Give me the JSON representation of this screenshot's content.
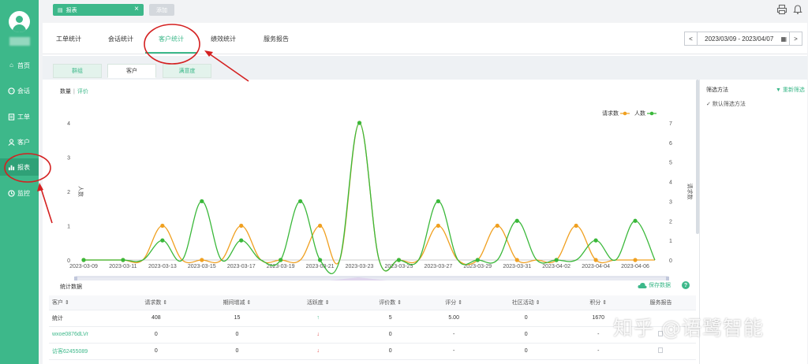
{
  "sidebar": {
    "items": [
      {
        "label": "首页",
        "icon": "home-icon"
      },
      {
        "label": "会话",
        "icon": "chat-icon"
      },
      {
        "label": "工单",
        "icon": "ticket-icon"
      },
      {
        "label": "客户",
        "icon": "user-icon"
      },
      {
        "label": "报表",
        "icon": "bar-chart-icon",
        "active": true
      },
      {
        "label": "监控",
        "icon": "monitor-icon"
      }
    ]
  },
  "topbar": {
    "page_tab": "报表",
    "add_tab": "添加"
  },
  "module_tabs": [
    "工单统计",
    "会话统计",
    "客户统计",
    "绩效统计",
    "服务报告"
  ],
  "date_range": {
    "prev": "<",
    "value": "2023/03/09 - 2023/04/07",
    "next": ">"
  },
  "sub_tabs": [
    "群组",
    "客户",
    "满意度"
  ],
  "metric_switch": {
    "count": "数量",
    "sep": "|",
    "eval": "评价"
  },
  "filter": {
    "title": "筛选方法",
    "reset": "重新筛选",
    "default": "默认筛选方法"
  },
  "chart_data": {
    "type": "line",
    "x": [
      "2023-03-09",
      "2023-03-10",
      "2023-03-11",
      "2023-03-12",
      "2023-03-13",
      "2023-03-14",
      "2023-03-15",
      "2023-03-16",
      "2023-03-17",
      "2023-03-18",
      "2023-03-19",
      "2023-03-20",
      "2023-03-21",
      "2023-03-22",
      "2023-03-23",
      "2023-03-24",
      "2023-03-25",
      "2023-03-26",
      "2023-03-27",
      "2023-03-28",
      "2023-03-29",
      "2023-03-30",
      "2023-03-31",
      "2023-04-01",
      "2023-04-02",
      "2023-04-03",
      "2023-04-04",
      "2023-04-05",
      "2023-04-06",
      "2023-04-07"
    ],
    "x_tick_labels": [
      "2023-03-09",
      "2023-03-11",
      "2023-03-13",
      "2023-03-15",
      "2023-03-17",
      "2023-03-19",
      "2023-03-21",
      "2023-03-23",
      "2023-03-25",
      "2023-03-27",
      "2023-03-29",
      "2023-03-31",
      "2023-04-02",
      "2023-04-04",
      "2023-04-06"
    ],
    "series": [
      {
        "name": "请求数",
        "color": "#f0a020",
        "axis": "left",
        "values": [
          0,
          0,
          0,
          0,
          1,
          0,
          0,
          0,
          1,
          0,
          0,
          0,
          1,
          0,
          4,
          0,
          0,
          0,
          1,
          0,
          0,
          1,
          0,
          0,
          0,
          1,
          0,
          0,
          0,
          0
        ]
      },
      {
        "name": "人数",
        "color": "#3ab83a",
        "axis": "right",
        "values": [
          0,
          0,
          0,
          0,
          1,
          0,
          3,
          0,
          1,
          0,
          0,
          3,
          0,
          0,
          7,
          0,
          0,
          0,
          3,
          0,
          0,
          0,
          2,
          0,
          0,
          0,
          1,
          0,
          2,
          0
        ]
      }
    ],
    "ylabel_left": "人数",
    "ylabel_right": "请求数",
    "ylim_left": [
      0,
      4
    ],
    "ylim_right": [
      0,
      7
    ],
    "yticks_left": [
      "0",
      "1",
      "2",
      "3",
      "4"
    ],
    "yticks_right": [
      "0",
      "1",
      "2",
      "3",
      "4",
      "5",
      "6",
      "7"
    ],
    "legend_position": "top-right"
  },
  "stats": {
    "title": "统计数据",
    "save": "保存数据",
    "help": "?",
    "headers": [
      "客户 ⇕",
      "请求数 ⇕",
      "期间增减 ⇕",
      "活跃度 ⇕",
      "评价数 ⇕",
      "评分 ⇕",
      "社区活动 ⇕",
      "积分 ⇕",
      "服务报告"
    ],
    "rows": [
      [
        "统计",
        "408",
        "15",
        "↑",
        "5",
        "5.00",
        "0",
        "1670",
        ""
      ],
      [
        "wxoe0876dLVr",
        "0",
        "0",
        "↓",
        "0",
        "-",
        "0",
        "-",
        "doc"
      ],
      [
        "访客62455089",
        "0",
        "0",
        "↓",
        "0",
        "-",
        "0",
        "-",
        "doc"
      ]
    ]
  },
  "watermark": "知乎 @语鹭智能"
}
